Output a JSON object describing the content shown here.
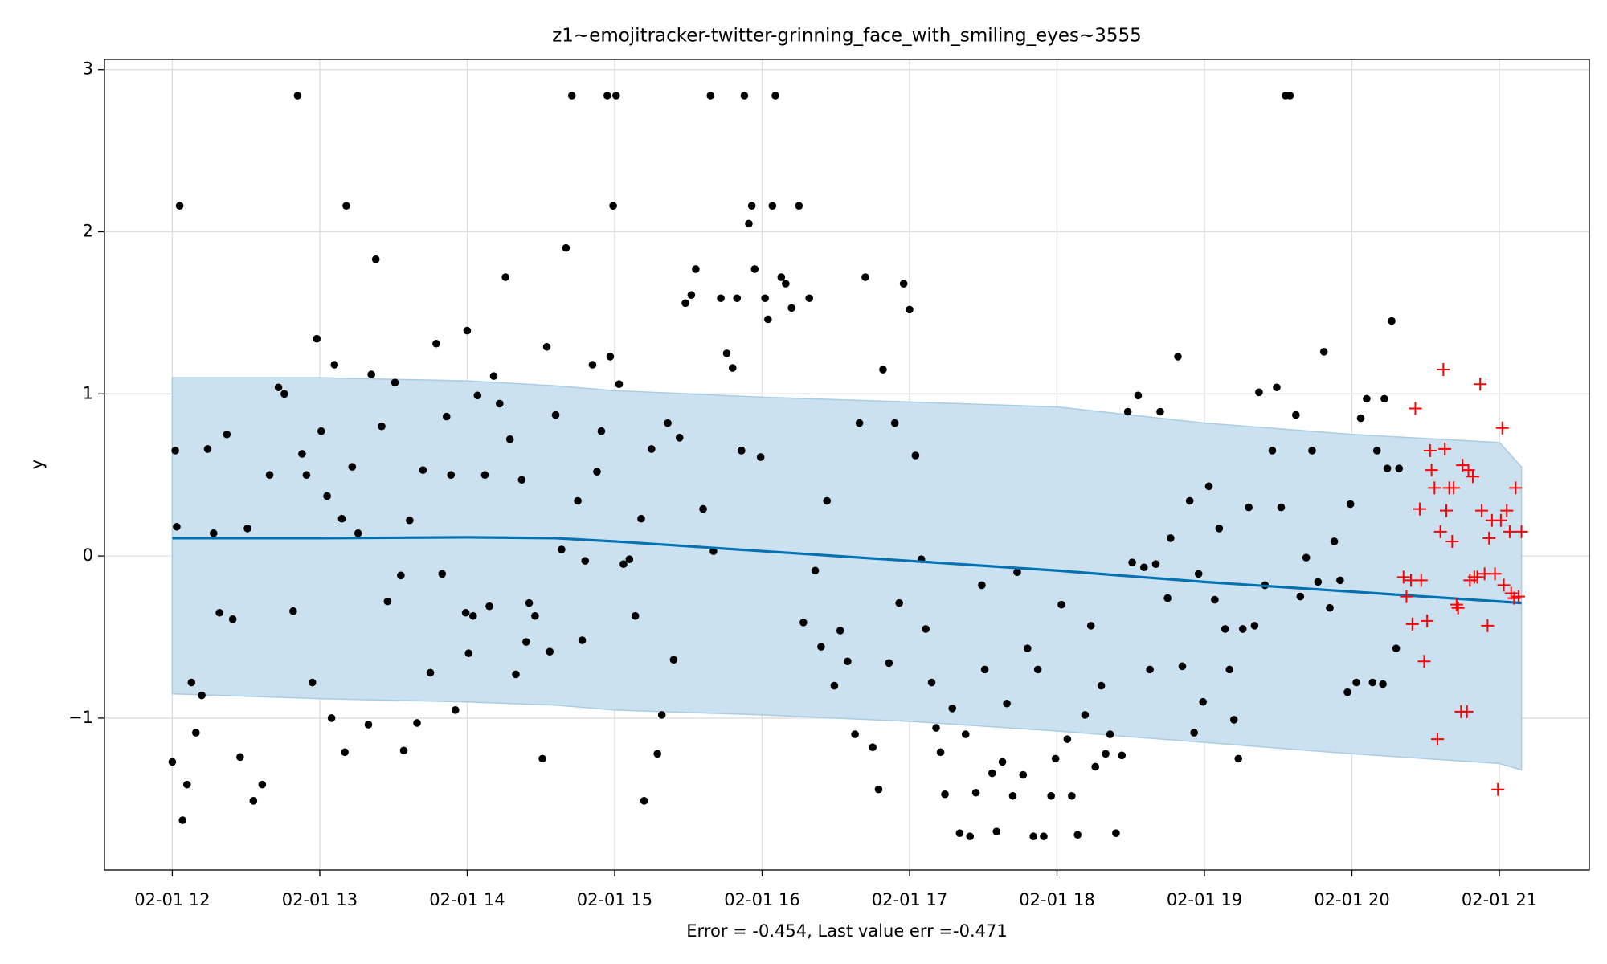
{
  "chart_data": {
    "type": "forecast",
    "title": "z1~emojitracker-twitter-grinning_face_with_smiling_eyes~3555",
    "ylabel": "y",
    "xlabel": "Error = -0.454, Last value err =-0.471",
    "xlim": [
      11.54,
      21.61
    ],
    "ylim": [
      -1.937,
      3.063
    ],
    "xticks": [
      {
        "value": 12,
        "label": "02-01 12"
      },
      {
        "value": 13,
        "label": "02-01 13"
      },
      {
        "value": 14,
        "label": "02-01 14"
      },
      {
        "value": 15,
        "label": "02-01 15"
      },
      {
        "value": 16,
        "label": "02-01 16"
      },
      {
        "value": 17,
        "label": "02-01 17"
      },
      {
        "value": 18,
        "label": "02-01 18"
      },
      {
        "value": 19,
        "label": "02-01 19"
      },
      {
        "value": 20,
        "label": "02-01 20"
      },
      {
        "value": 21,
        "label": "02-01 21"
      }
    ],
    "yticks": [
      {
        "value": -1,
        "label": "−1"
      },
      0,
      1,
      2,
      3
    ],
    "grid": true,
    "band": {
      "color": "#cce1ef",
      "edge_color": "#a9cce4",
      "x": [
        12,
        13,
        14,
        14.6,
        15,
        16,
        17,
        18,
        19,
        20,
        21,
        21.15
      ],
      "upper": [
        1.1,
        1.1,
        1.08,
        1.05,
        1.02,
        0.98,
        0.95,
        0.92,
        0.82,
        0.75,
        0.7,
        0.55
      ],
      "lower": [
        -0.85,
        -0.88,
        -0.9,
        -0.92,
        -0.95,
        -0.98,
        -1.02,
        -1.08,
        -1.15,
        -1.22,
        -1.28,
        -1.32
      ]
    },
    "trend": {
      "color": "#0072b2",
      "x": [
        12,
        13,
        14,
        14.6,
        15,
        16,
        17,
        18,
        19,
        20,
        21.15
      ],
      "y": [
        0.11,
        0.11,
        0.115,
        0.11,
        0.09,
        0.03,
        -0.03,
        -0.09,
        -0.16,
        -0.22,
        -0.29
      ]
    },
    "observed": {
      "color": "#000000",
      "marker": "dot",
      "x": [
        12.0,
        12.02,
        12.03,
        12.05,
        12.07,
        12.1,
        12.13,
        12.16,
        12.2,
        12.24,
        12.28,
        12.32,
        12.37,
        12.41,
        12.46,
        12.51,
        12.55,
        12.61,
        12.66,
        12.72,
        12.76,
        12.82,
        12.85,
        12.88,
        12.91,
        12.95,
        12.98,
        13.01,
        13.05,
        13.08,
        13.1,
        13.15,
        13.17,
        13.18,
        13.22,
        13.26,
        13.33,
        13.35,
        13.38,
        13.42,
        13.46,
        13.51,
        13.55,
        13.57,
        13.61,
        13.66,
        13.7,
        13.75,
        13.79,
        13.83,
        13.86,
        13.89,
        13.92,
        13.99,
        14.01,
        14.0,
        14.04,
        14.07,
        14.12,
        14.15,
        14.18,
        14.22,
        14.26,
        14.29,
        14.33,
        14.37,
        14.4,
        14.42,
        14.46,
        14.51,
        14.54,
        14.56,
        14.6,
        14.64,
        14.67,
        14.71,
        14.75,
        14.78,
        14.8,
        14.85,
        14.88,
        14.91,
        14.95,
        14.97,
        14.99,
        15.01,
        15.03,
        15.06,
        15.1,
        15.14,
        15.18,
        15.2,
        15.25,
        15.29,
        15.32,
        15.36,
        15.4,
        15.44,
        15.48,
        15.52,
        15.55,
        15.6,
        15.65,
        15.67,
        15.72,
        15.76,
        15.8,
        15.83,
        15.86,
        15.88,
        15.91,
        15.93,
        15.95,
        15.99,
        16.02,
        16.04,
        16.07,
        16.09,
        16.13,
        16.16,
        16.2,
        16.25,
        16.28,
        16.32,
        16.36,
        16.4,
        16.44,
        16.49,
        16.53,
        16.58,
        16.63,
        16.66,
        16.7,
        16.75,
        16.79,
        16.82,
        16.86,
        16.9,
        16.93,
        16.96,
        17.0,
        17.04,
        17.08,
        17.11,
        17.15,
        17.18,
        17.21,
        17.24,
        17.29,
        17.34,
        17.38,
        17.41,
        17.45,
        17.49,
        17.51,
        17.56,
        17.59,
        17.63,
        17.66,
        17.7,
        17.73,
        17.77,
        17.8,
        17.84,
        17.87,
        17.91,
        17.96,
        17.99,
        18.03,
        18.07,
        18.1,
        18.14,
        18.19,
        18.23,
        18.26,
        18.3,
        18.33,
        18.36,
        18.4,
        18.44,
        18.48,
        18.51,
        18.55,
        18.59,
        18.63,
        18.67,
        18.7,
        18.75,
        18.77,
        18.82,
        18.85,
        18.9,
        18.93,
        18.96,
        18.99,
        19.03,
        19.07,
        19.1,
        19.14,
        19.17,
        19.2,
        19.23,
        19.26,
        19.3,
        19.34,
        19.37,
        19.41,
        19.46,
        19.49,
        19.52,
        19.55,
        19.58,
        19.62,
        19.65,
        19.69,
        19.73,
        19.77,
        19.81,
        19.85,
        19.88,
        19.92,
        19.97,
        19.99,
        20.03,
        20.06,
        20.1,
        20.14,
        20.17,
        20.21,
        20.22,
        20.24,
        20.27,
        20.3,
        20.32
      ],
      "y": [
        -1.27,
        0.65,
        0.18,
        2.16,
        -1.63,
        -1.41,
        -0.78,
        -1.09,
        -0.86,
        0.66,
        0.14,
        -0.35,
        0.75,
        -0.39,
        -1.24,
        0.17,
        -1.51,
        -1.41,
        0.5,
        1.04,
        1.0,
        -0.34,
        2.84,
        0.63,
        0.5,
        -0.78,
        1.34,
        0.77,
        0.37,
        -1.0,
        1.18,
        0.23,
        -1.21,
        2.16,
        0.55,
        0.14,
        -1.04,
        1.12,
        1.83,
        0.8,
        -0.28,
        1.07,
        -0.12,
        -1.2,
        0.22,
        -1.03,
        0.53,
        -0.72,
        1.31,
        -0.11,
        0.86,
        0.5,
        -0.95,
        -0.35,
        -0.6,
        1.39,
        -0.37,
        0.99,
        0.5,
        -0.31,
        1.11,
        0.94,
        1.72,
        0.72,
        -0.73,
        0.47,
        -0.53,
        -0.29,
        -0.37,
        -1.25,
        1.29,
        -0.59,
        0.87,
        0.04,
        1.9,
        2.84,
        0.34,
        -0.52,
        -0.03,
        1.18,
        0.52,
        0.77,
        2.84,
        1.23,
        2.16,
        2.84,
        1.06,
        -0.05,
        -0.02,
        -0.37,
        0.23,
        -1.51,
        0.66,
        -1.22,
        -0.98,
        0.82,
        -0.64,
        0.73,
        1.56,
        1.61,
        1.77,
        0.29,
        2.84,
        0.03,
        1.59,
        1.25,
        1.16,
        1.59,
        0.65,
        2.84,
        2.05,
        2.16,
        1.77,
        0.61,
        1.59,
        1.46,
        2.16,
        2.84,
        1.72,
        1.68,
        1.53,
        2.16,
        -0.41,
        1.59,
        -0.09,
        -0.56,
        0.34,
        -0.8,
        -0.46,
        -0.65,
        -1.1,
        0.82,
        1.72,
        -1.18,
        -1.44,
        1.15,
        -0.66,
        0.82,
        -0.29,
        1.68,
        1.52,
        0.62,
        -0.02,
        -0.45,
        -0.78,
        -1.06,
        -1.21,
        -1.47,
        -0.94,
        -1.71,
        -1.1,
        -1.73,
        -1.46,
        -0.18,
        -0.7,
        -1.34,
        -1.7,
        -1.27,
        -0.91,
        -1.48,
        -0.1,
        -1.35,
        -0.57,
        -1.73,
        -0.7,
        -1.73,
        -1.48,
        -1.25,
        -0.3,
        -1.13,
        -1.48,
        -1.72,
        -0.98,
        -0.43,
        -1.3,
        -0.8,
        -1.22,
        -1.1,
        -1.71,
        -1.23,
        0.89,
        -0.04,
        0.99,
        -0.07,
        -0.7,
        -0.05,
        0.89,
        -0.26,
        0.11,
        1.23,
        -0.68,
        0.34,
        -1.09,
        -0.11,
        -0.9,
        0.43,
        -0.27,
        0.17,
        -0.45,
        -0.7,
        -1.01,
        -1.25,
        -0.45,
        0.3,
        -0.43,
        1.01,
        -0.18,
        0.65,
        1.04,
        0.3,
        2.84,
        2.84,
        0.87,
        -0.25,
        -0.01,
        0.65,
        -0.16,
        1.26,
        -0.32,
        0.09,
        -0.15,
        -0.84,
        0.32,
        -0.78,
        0.85,
        0.97,
        -0.78,
        0.65,
        -0.79,
        0.97,
        0.54,
        1.45,
        -0.57,
        0.54
      ]
    },
    "holdout": {
      "color": "#ff0000",
      "marker": "plus",
      "x": [
        20.35,
        20.37,
        20.4,
        20.41,
        20.43,
        20.46,
        20.47,
        20.49,
        20.51,
        20.53,
        20.54,
        20.56,
        20.58,
        20.6,
        20.62,
        20.63,
        20.64,
        20.66,
        20.68,
        20.69,
        20.71,
        20.72,
        20.74,
        20.75,
        20.78,
        20.79,
        20.8,
        20.82,
        20.83,
        20.85,
        20.87,
        20.88,
        20.9,
        20.92,
        20.93,
        20.95,
        20.97,
        20.99,
        21.01,
        21.02,
        21.03,
        21.05,
        21.07,
        21.08,
        21.1,
        21.11,
        21.13,
        21.15
      ],
      "y": [
        -0.13,
        -0.25,
        -0.15,
        -0.42,
        0.91,
        0.29,
        -0.15,
        -0.65,
        -0.4,
        0.65,
        0.53,
        0.42,
        -1.13,
        0.15,
        1.15,
        0.66,
        0.28,
        0.42,
        0.09,
        0.42,
        -0.3,
        -0.32,
        -0.96,
        0.56,
        -0.96,
        0.53,
        -0.15,
        0.49,
        -0.13,
        -0.13,
        1.06,
        0.28,
        -0.11,
        -0.43,
        0.11,
        0.22,
        -0.11,
        -1.44,
        0.22,
        0.79,
        -0.18,
        0.28,
        0.15,
        -0.23,
        -0.26,
        0.42,
        -0.25,
        0.15
      ]
    }
  }
}
